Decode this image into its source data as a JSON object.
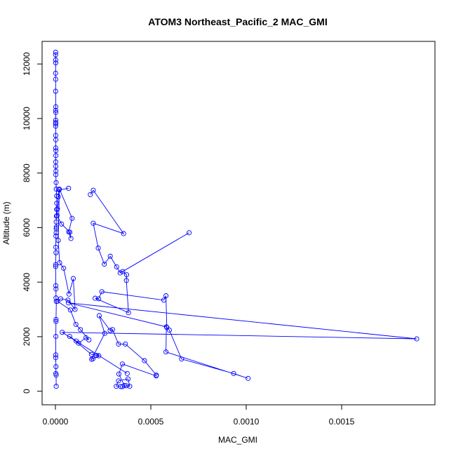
{
  "chart_data": {
    "type": "line",
    "title": "ATOM3 Northeast_Pacific_2 MAC_GMI",
    "xlabel": "MAC_GMI",
    "ylabel": "Altitude (m)",
    "xlim": [
      -6.98e-05,
      0.0019889
    ],
    "ylim": [
      -498,
      12828
    ],
    "x_ticks": [
      0.0,
      0.0005,
      0.001,
      0.0015
    ],
    "x_tick_labels": [
      "0.0000",
      "0.0005",
      "0.0010",
      "0.0015"
    ],
    "y_ticks": [
      0,
      2000,
      4000,
      6000,
      8000,
      10000,
      12000
    ],
    "y_tick_labels": [
      "0",
      "2000",
      "4000",
      "6000",
      "8000",
      "10000",
      "12000"
    ],
    "marker": "open-circle",
    "grid": false,
    "legend": "none",
    "colors": {
      "series": "#0000ff",
      "axes": "#000000",
      "background": "#ffffff"
    },
    "series": [
      {
        "points": [
          [
            1.1e-06,
            12430
          ],
          [
            1.1e-06,
            12340
          ],
          [
            1.5e-06,
            12150
          ],
          [
            1.8e-06,
            12040
          ],
          [
            1.1e-06,
            11660
          ],
          [
            1.5e-06,
            11440
          ],
          [
            1.1e-06,
            11000
          ],
          [
            1.8e-06,
            10430
          ],
          [
            1.5e-06,
            10300
          ],
          [
            2.2e-06,
            10220
          ],
          [
            1.8e-06,
            9940
          ],
          [
            1.5e-06,
            9860
          ],
          [
            1.8e-06,
            9810
          ],
          [
            1.5e-06,
            9720
          ],
          [
            1.8e-06,
            9380
          ],
          [
            2.2e-06,
            9220
          ],
          [
            1.8e-06,
            8920
          ],
          [
            2.6e-06,
            8820
          ],
          [
            2.2e-06,
            8640
          ],
          [
            1.8e-06,
            8410
          ],
          [
            2.2e-06,
            8250
          ],
          [
            2.6e-06,
            8070
          ],
          [
            2.2e-06,
            7940
          ],
          [
            3.7e-06,
            7650
          ],
          [
            4.4e-06,
            7410
          ],
          [
            6.7e-06,
            7160
          ],
          [
            7e-06,
            6890
          ],
          [
            6.3e-06,
            6660
          ],
          [
            5.2e-06,
            6420
          ],
          [
            4.1e-06,
            6210
          ],
          [
            4.8e-06,
            6020
          ],
          [
            4.4e-06,
            5960
          ],
          [
            3.7e-06,
            5810
          ],
          [
            2.6e-06,
            5690
          ],
          [
            2.2e-06,
            5280
          ],
          [
            3e-06,
            5080
          ],
          [
            1.1e-06,
            4640
          ],
          [
            1.5e-06,
            4570
          ],
          [
            2.2e-06,
            3870
          ],
          [
            3e-06,
            3750
          ],
          [
            3e-06,
            3420
          ],
          [
            4.8e-06,
            3290
          ],
          [
            3.3e-06,
            2630
          ],
          [
            3e-06,
            2560
          ],
          [
            2.2e-06,
            2010
          ],
          [
            1.8e-06,
            1330
          ],
          [
            1.5e-06,
            1230
          ],
          [
            3e-06,
            900
          ],
          [
            2.2e-06,
            650
          ],
          [
            3.7e-06,
            590
          ],
          [
            4.1e-06,
            180
          ]
        ]
      },
      {
        "points": [
          [
            6.89e-05,
            7440
          ],
          [
            1.93e-05,
            7380
          ],
          [
            1.48e-05,
            7130
          ],
          [
            1.04e-05,
            6690
          ],
          [
            8.5e-06,
            6440
          ],
          [
            3.22e-05,
            6130
          ],
          [
            7.56e-05,
            5830
          ],
          [
            8.15e-05,
            5600
          ],
          [
            6.96e-05,
            5840
          ],
          [
            8.74e-05,
            6340
          ],
          [
            2.07e-05,
            7410
          ],
          [
            1.48e-05,
            5530
          ],
          [
            2.22e-05,
            4710
          ],
          [
            4.3e-05,
            4510
          ],
          [
            7.11e-05,
            3560
          ],
          [
            9.37e-05,
            4130
          ],
          [
            0.000103,
            3000
          ],
          [
            6.59e-05,
            3340
          ],
          [
            2.74e-05,
            3390
          ],
          [
            1.11e-05,
            3300
          ],
          [
            7.85e-05,
            2980
          ],
          [
            0.0001074,
            2450
          ],
          [
            0.0001311,
            2260
          ],
          [
            0.0001756,
            1880
          ],
          [
            0.00016,
            1960
          ],
          [
            0.0001215,
            1760
          ],
          [
            0.0001089,
            1840
          ],
          [
            7.48e-05,
            2010
          ],
          [
            0.0001889,
            1350
          ],
          [
            0.0002163,
            1310
          ],
          [
            0.0002274,
            1300
          ],
          [
            0.000197,
            1190
          ],
          [
            0.0001896,
            1170
          ],
          [
            0.0002585,
            2120
          ],
          [
            0.0002296,
            2770
          ],
          [
            0.0002867,
            2230
          ],
          [
            0.0002993,
            2260
          ],
          [
            0.0003307,
            1730
          ],
          [
            0.0003667,
            1730
          ],
          [
            0.0004667,
            1120
          ],
          [
            0.0005289,
            590
          ],
          [
            0.0005281,
            560
          ],
          [
            0.0003511,
            1000
          ],
          [
            0.0003326,
            630
          ],
          [
            0.0003611,
            210
          ],
          [
            0.0003519,
            170
          ],
          [
            0.0003719,
            200
          ],
          [
            0.0003896,
            180
          ],
          [
            0.0003807,
            450
          ],
          [
            0.0003304,
            380
          ],
          [
            0.0003189,
            180
          ],
          [
            0.0003415,
            170
          ]
        ]
      },
      {
        "points": [
          [
            0.000183,
            7210
          ],
          [
            0.0001985,
            7370
          ],
          [
            0.0003574,
            5780
          ],
          [
            0.0001981,
            6160
          ],
          [
            0.0002244,
            5250
          ],
          [
            0.0002563,
            4660
          ],
          [
            0.0002874,
            4950
          ],
          [
            0.0003207,
            4560
          ],
          [
            0.0003396,
            4340
          ],
          [
            0.0007007,
            5810
          ],
          [
            0.0003526,
            4390
          ],
          [
            0.0003733,
            4270
          ],
          [
            0.0003719,
            4060
          ],
          [
            0.000383,
            2880
          ],
          [
            0.0002081,
            3410
          ],
          [
            0.0002263,
            3390
          ],
          [
            0.0002433,
            3650
          ],
          [
            0.0005681,
            3340
          ],
          [
            0.0005793,
            3500
          ],
          [
            0.0005837,
            2340
          ],
          [
            0.000597,
            2240
          ],
          [
            0.0006611,
            1180
          ],
          [
            0.0009341,
            650
          ],
          [
            0.0010096,
            470
          ],
          [
            0.0005793,
            1440
          ],
          [
            0.0005815,
            2360
          ],
          [
            6.81e-05,
            3240
          ],
          [
            0.0018933,
            1920
          ],
          [
            3.56e-05,
            2160
          ],
          [
            0.0003763,
            650
          ]
        ]
      }
    ]
  }
}
